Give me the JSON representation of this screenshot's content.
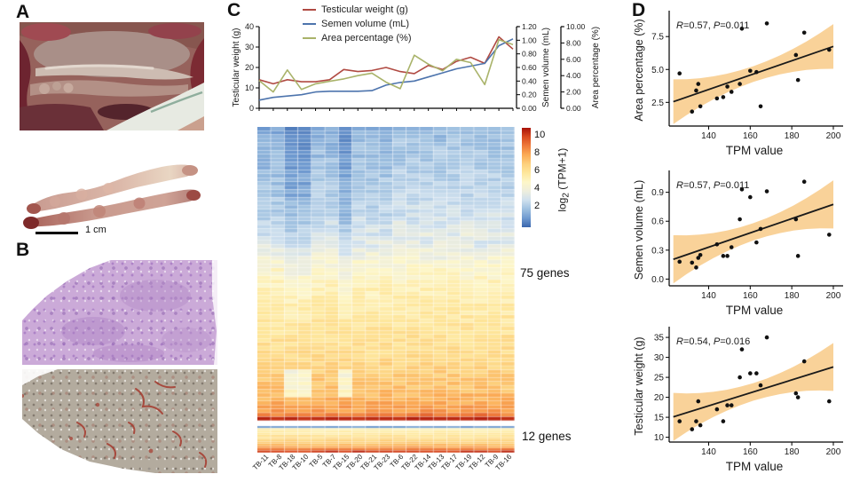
{
  "panel_labels": {
    "a": "A",
    "b": "B",
    "c": "C",
    "d": "D"
  },
  "panel_a": {
    "scale_bar_label": "1 cm"
  },
  "chart_data": [
    {
      "id": "testis-line-chart",
      "type": "line",
      "x_categories": [
        "TB-11",
        "TB-8",
        "TB-18",
        "TB-10",
        "TB-5",
        "TB-7",
        "TB-15",
        "TB-20",
        "TB-21",
        "TB-23",
        "TB-6",
        "TB-22",
        "TB-14",
        "TB-13",
        "TB-17",
        "TB-19",
        "TB-12",
        "TB-9",
        "TB-16"
      ],
      "legend_position": "top",
      "series": [
        {
          "name": "Testicular weight (g)",
          "color": "#b04a42",
          "axis": "left",
          "values": [
            14,
            12,
            14,
            13,
            13,
            14,
            19,
            18,
            18.5,
            20,
            18,
            17,
            21,
            19,
            23,
            25,
            22,
            35,
            29
          ]
        },
        {
          "name": "Semen volume (mL)",
          "color": "#4d74ad",
          "axis": "right1",
          "values": [
            0.12,
            0.16,
            0.18,
            0.2,
            0.24,
            0.25,
            0.25,
            0.25,
            0.26,
            0.34,
            0.38,
            0.4,
            0.46,
            0.52,
            0.58,
            0.62,
            0.66,
            0.92,
            1.02
          ]
        },
        {
          "name": "Area percentage (%)",
          "color": "#a9b36a",
          "axis": "right2",
          "values": [
            3.4,
            2.0,
            4.7,
            2.3,
            3.0,
            3.3,
            3.6,
            4.0,
            4.3,
            3.2,
            2.4,
            6.5,
            5.4,
            4.6,
            6.0,
            5.6,
            2.9,
            8.4,
            7.8
          ]
        }
      ],
      "axes": {
        "left": {
          "label": "Testicular weight (g)",
          "ticks": [
            "0",
            "10",
            "20",
            "30",
            "40"
          ],
          "tick_values": [
            0,
            10,
            20,
            30,
            40
          ],
          "range": [
            0,
            40
          ]
        },
        "right1": {
          "label": "Semen volume (mL)",
          "ticks": [
            "0.00",
            "0.20",
            "0.40",
            "0.60",
            "0.80",
            "1.00",
            "1.20"
          ],
          "tick_values": [
            0,
            0.2,
            0.4,
            0.6,
            0.8,
            1.0,
            1.2
          ],
          "range": [
            0,
            1.2
          ]
        },
        "right2": {
          "label": "Area percentage (%)",
          "ticks": [
            "0.00",
            "2.00",
            "4.00",
            "6.00",
            "8.00",
            "10.00"
          ],
          "tick_values": [
            0,
            2,
            4,
            6,
            8,
            10
          ],
          "range": [
            0,
            10
          ]
        }
      }
    },
    {
      "id": "gene-expression-heatmap",
      "type": "heatmap",
      "samples": [
        "TB-11",
        "TB-8",
        "TB-18",
        "TB-10",
        "TB-5",
        "TB-7",
        "TB-15",
        "TB-20",
        "TB-21",
        "TB-23",
        "TB-6",
        "TB-22",
        "TB-14",
        "TB-13",
        "TB-17",
        "TB-19",
        "TB-12",
        "TB-9",
        "TB-16"
      ],
      "gene_groups": [
        {
          "label": "75 genes",
          "rows": 75
        },
        {
          "label": "12 genes",
          "rows": 12
        }
      ],
      "colorbar": {
        "ticks": [
          "10",
          "8",
          "6",
          "4",
          "2"
        ],
        "tick_values": [
          10,
          8,
          6,
          4,
          2
        ],
        "label_prefix": "log",
        "label_sub": "2",
        "label_suffix": " (TPM+1)",
        "range": [
          0,
          11
        ]
      },
      "row_profile_main": [
        [
          0,
          2.6
        ],
        [
          10,
          3.1
        ],
        [
          22,
          3.7
        ],
        [
          30,
          4.5
        ],
        [
          36,
          5.5
        ],
        [
          45,
          6.2
        ],
        [
          58,
          7.0
        ],
        [
          68,
          8.1
        ],
        [
          72,
          8.8
        ],
        [
          73,
          9.4
        ],
        [
          74,
          11.0
        ]
      ],
      "row_profile_sub": [
        [
          0,
          2.2
        ],
        [
          1,
          5.8
        ],
        [
          5,
          6.9
        ],
        [
          8,
          7.9
        ],
        [
          10,
          9.3
        ],
        [
          11,
          10.5
        ]
      ],
      "cool_columns": [
        2,
        3,
        6
      ],
      "color_stops": [
        [
          0,
          "#3a66ad"
        ],
        [
          2,
          "#6f9ad0"
        ],
        [
          3,
          "#9ec0e0"
        ],
        [
          4,
          "#cfe0ee"
        ],
        [
          4.8,
          "#eeeedd"
        ],
        [
          5.5,
          "#fdf6c8"
        ],
        [
          6.5,
          "#fee79c"
        ],
        [
          7.5,
          "#fdd07c"
        ],
        [
          8.5,
          "#fbab55"
        ],
        [
          9.5,
          "#ef7b3b"
        ],
        [
          10.3,
          "#d94a1f"
        ],
        [
          11,
          "#a81208"
        ]
      ]
    },
    {
      "id": "scatter-area-percentage",
      "type": "scatter",
      "title": "",
      "xlabel": "TPM value",
      "ylabel": "Area percentage (%)",
      "annotation": {
        "r_label": "R",
        "r_value": "=0.57, ",
        "p_label": "P",
        "p_value": "=0.011"
      },
      "x": [
        126,
        132,
        134,
        135,
        136,
        144,
        147,
        149,
        151,
        155,
        156,
        160,
        163,
        165,
        168,
        182,
        183,
        186,
        198
      ],
      "y": [
        4.7,
        1.8,
        3.4,
        3.9,
        2.2,
        2.8,
        2.9,
        3.7,
        3.3,
        3.9,
        8.1,
        4.9,
        4.8,
        2.2,
        8.5,
        6.1,
        4.2,
        7.8,
        6.5
      ],
      "xlim": [
        121,
        203
      ],
      "ylim": [
        0.7,
        9.2
      ],
      "xticks": [
        140,
        160,
        180,
        200
      ],
      "xtick_labels": [
        "140",
        "160",
        "180",
        "200"
      ],
      "ytick_values": [
        2.5,
        5.0,
        7.5
      ],
      "ytick_labels": [
        "2.5",
        "5.0",
        "7.5"
      ],
      "fit": {
        "x0": 123,
        "y0": 2.55,
        "x1": 200,
        "y1": 6.75,
        "hw_mid": 0.6,
        "hw_end": 1.7
      },
      "band_color": "#f8cd8e",
      "point_color": "#111111",
      "line_color": "#1a1a1a"
    },
    {
      "id": "scatter-semen-volume",
      "type": "scatter",
      "title": "",
      "xlabel": "TPM value",
      "ylabel": "Semen volume (mL)",
      "annotation": {
        "r_label": "R",
        "r_value": "=0.57, ",
        "p_label": "P",
        "p_value": "=0.011"
      },
      "x": [
        126,
        132,
        134,
        135,
        136,
        144,
        147,
        149,
        151,
        155,
        156,
        160,
        163,
        165,
        168,
        182,
        183,
        186,
        198
      ],
      "y": [
        0.18,
        0.17,
        0.12,
        0.22,
        0.25,
        0.36,
        0.24,
        0.24,
        0.33,
        0.62,
        0.93,
        0.85,
        0.38,
        0.52,
        0.91,
        0.62,
        0.24,
        1.01,
        0.46
      ],
      "xlim": [
        121,
        203
      ],
      "ylim": [
        -0.07,
        1.09
      ],
      "xticks": [
        140,
        160,
        180,
        200
      ],
      "xtick_labels": [
        "140",
        "160",
        "180",
        "200"
      ],
      "ytick_values": [
        0.0,
        0.3,
        0.6,
        0.9
      ],
      "ytick_labels": [
        "0.0",
        "0.3",
        "0.6",
        "0.9"
      ],
      "fit": {
        "x0": 123,
        "y0": 0.205,
        "x1": 200,
        "y1": 0.775,
        "hw_mid": 0.09,
        "hw_end": 0.25
      },
      "band_color": "#f8cd8e",
      "point_color": "#111111",
      "line_color": "#1a1a1a"
    },
    {
      "id": "scatter-testicular-weight",
      "type": "scatter",
      "title": "",
      "xlabel": "TPM value",
      "ylabel": "Testicular weight (g)",
      "annotation": {
        "r_label": "R",
        "r_value": "=0.54, ",
        "p_label": "P",
        "p_value": "=0.016"
      },
      "x": [
        126,
        132,
        134,
        135,
        136,
        144,
        147,
        149,
        151,
        155,
        156,
        160,
        163,
        165,
        168,
        182,
        183,
        186,
        198
      ],
      "y": [
        14,
        12,
        14,
        19,
        13,
        17,
        14,
        18,
        18,
        25,
        32,
        26,
        26,
        23,
        35,
        21,
        20,
        29,
        19
      ],
      "xlim": [
        121,
        203
      ],
      "ylim": [
        8.8,
        36.8
      ],
      "xticks": [
        140,
        160,
        180,
        200
      ],
      "xtick_labels": [
        "140",
        "160",
        "180",
        "200"
      ],
      "ytick_values": [
        10,
        15,
        20,
        25,
        30,
        35
      ],
      "ytick_labels": [
        "10",
        "15",
        "20",
        "25",
        "30",
        "35"
      ],
      "fit": {
        "x0": 123,
        "y0": 15.1,
        "x1": 200,
        "y1": 27.6,
        "hw_mid": 2.2,
        "hw_end": 6.0
      },
      "band_color": "#f8cd8e",
      "point_color": "#111111",
      "line_color": "#1a1a1a"
    }
  ]
}
